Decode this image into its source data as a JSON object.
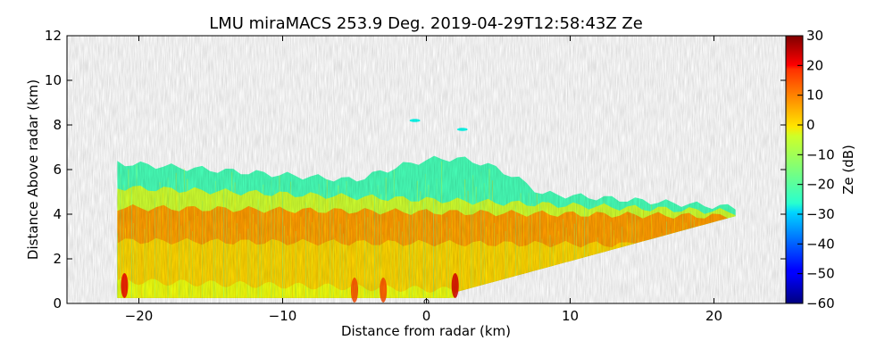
{
  "chart_data": {
    "type": "heatmap",
    "title": "LMU miraMACS 253.9 Deg. 2019-04-29T12:58:43Z  Ze",
    "xlabel": "Distance from radar (km)",
    "ylabel": "Distance Above radar  (km)",
    "xlim": [
      -25,
      25
    ],
    "ylim": [
      0,
      12
    ],
    "xticks": [
      -20,
      -10,
      0,
      10,
      20
    ],
    "yticks": [
      0,
      2,
      4,
      6,
      8,
      10,
      12
    ],
    "xtick_labels": [
      "−20",
      "−10",
      "0",
      "10",
      "20"
    ],
    "ytick_labels": [
      "0",
      "2",
      "4",
      "6",
      "8",
      "10",
      "12"
    ],
    "colorbar": {
      "label": "Ze (dB)",
      "range": [
        -60,
        30
      ],
      "ticks": [
        30,
        20,
        10,
        0,
        -10,
        -20,
        -30,
        -40,
        -50,
        -60
      ],
      "tick_labels": [
        "30",
        "20",
        "10",
        "0",
        "−10",
        "−20",
        "−30",
        "−40",
        "−50",
        "−60"
      ],
      "colormap": "jet"
    },
    "echo_region": {
      "left_edge_km": -22,
      "right_edge_km": 22,
      "left_top_km": 6.3,
      "right_top_km": 4.0,
      "scan_floor_right_km": [
        [
          2,
          0.5
        ],
        [
          22,
          4.0
        ]
      ]
    },
    "layers": [
      {
        "name": "upper cloud top",
        "x": [
          -21.5,
          21.5
        ],
        "ytop": [
          6.3,
          4.3
        ],
        "ze_db": -20
      },
      {
        "name": "mid layer",
        "x": [
          -21.5,
          21.5
        ],
        "ytop": [
          5.2,
          4.1
        ],
        "ze_db": -8
      },
      {
        "name": "bright band",
        "x": [
          -21.5,
          21.5
        ],
        "ytop": [
          4.3,
          3.9
        ],
        "ze_db": 5
      },
      {
        "name": "lower rain",
        "x": [
          -21.5,
          21.5
        ],
        "ytop": [
          2.8,
          2.6
        ],
        "ze_db": 0
      },
      {
        "name": "near ground",
        "x": [
          -21.5,
          2
        ],
        "ytop": [
          1.0,
          0.6
        ],
        "ze_db": -5
      }
    ],
    "cloud_top_bump": {
      "x": [
        -5,
        8
      ],
      "peak_km": 6.5,
      "ze_db": -25
    },
    "isolated_echoes": [
      {
        "x": -0.8,
        "y": 8.2,
        "ze_db": -25
      },
      {
        "x": 2.5,
        "y": 7.8,
        "ze_db": -25
      }
    ],
    "hotspots": [
      {
        "x": -21.0,
        "y": 0.8,
        "ze_db": 20
      },
      {
        "x": 2.0,
        "y": 0.8,
        "ze_db": 22
      },
      {
        "x": -5.0,
        "y": 0.6,
        "ze_db": 12
      },
      {
        "x": -3.0,
        "y": 0.6,
        "ze_db": 12
      }
    ],
    "radar_marker": {
      "x": 0,
      "y": 0
    }
  }
}
